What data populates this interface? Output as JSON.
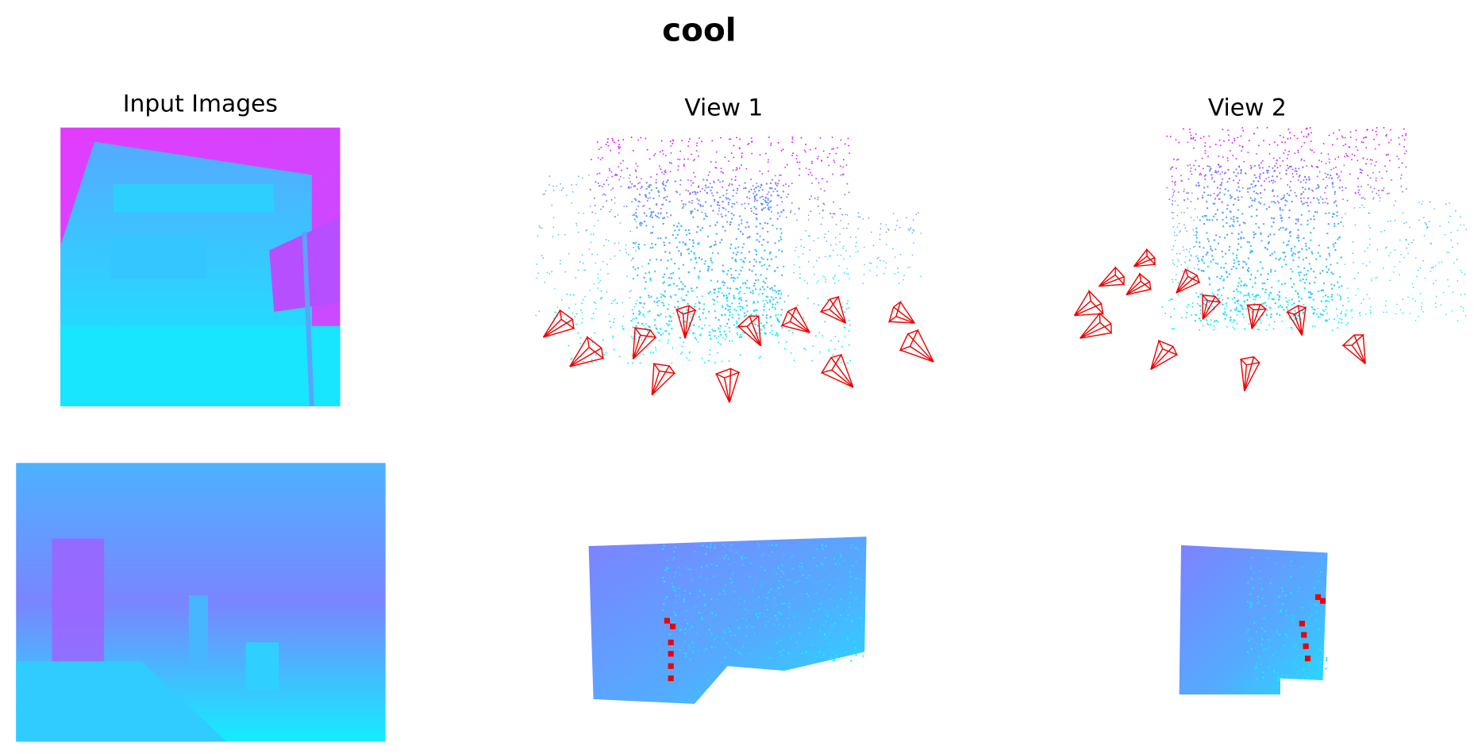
{
  "title": "cool",
  "panels": {
    "input": "Input Images",
    "view1": "View 1",
    "view2": "View 2"
  }
}
